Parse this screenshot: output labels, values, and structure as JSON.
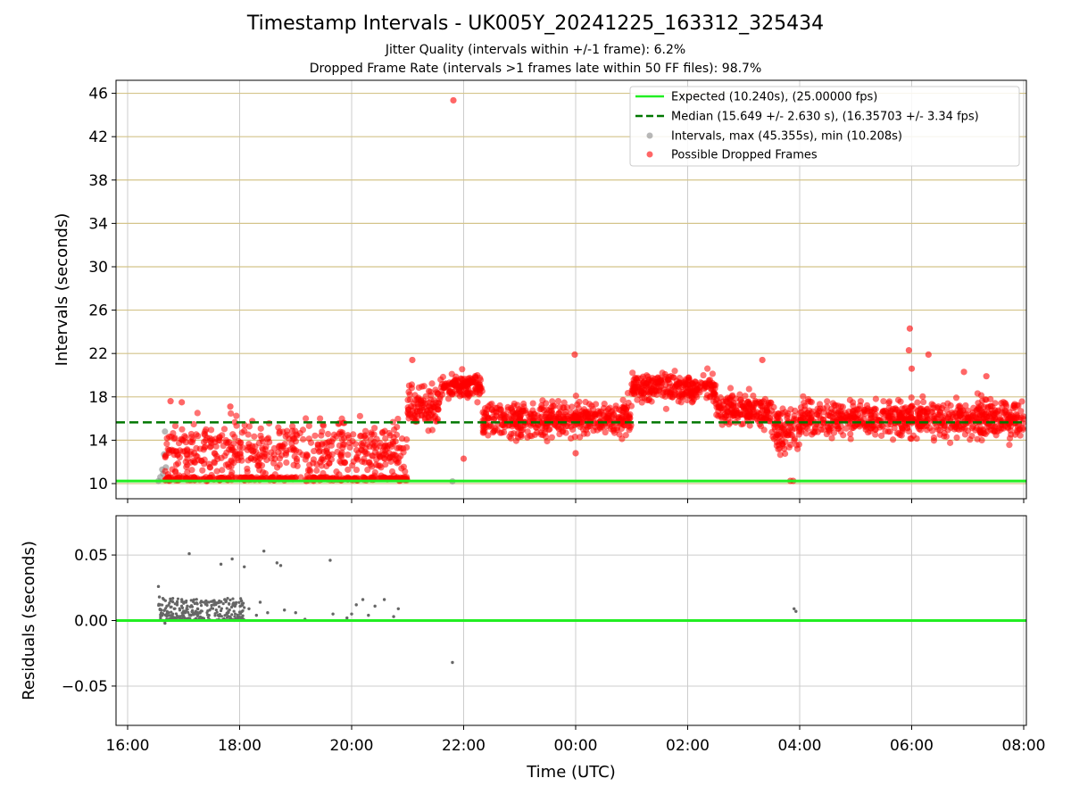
{
  "figure": {
    "title": "Timestamp Intervals - UK005Y_20241225_163312_325434",
    "subtitle_1": "Jitter Quality (intervals within +/-1 frame): 6.2%",
    "subtitle_2": "Dropped Frame Rate (intervals >1 frames late within 50 FF files): 98.7%"
  },
  "colors": {
    "expected_line": "#22ee22",
    "median_line": "#007700",
    "intervals_points": "#888888",
    "dropped_points": "#ff0000",
    "hgrid_top": "#d4c48a",
    "grid": "#cccccc"
  },
  "chart_data": [
    {
      "type": "scatter",
      "panel": "top",
      "title": "Timestamp Intervals - UK005Y_20241225_163312_325434",
      "xlabel": "",
      "ylabel": "Intervals (seconds)",
      "x_is_time": true,
      "xlim": [
        "16:00",
        "08:00"
      ],
      "x_ticks": [
        "16:00",
        "18:00",
        "20:00",
        "22:00",
        "00:00",
        "02:00",
        "04:00",
        "06:00",
        "08:00"
      ],
      "ylim": [
        8.6,
        47.2
      ],
      "y_ticks": [
        10,
        14,
        18,
        22,
        26,
        30,
        34,
        38,
        42,
        46
      ],
      "grid": true,
      "legend_position": "top-right",
      "lines": [
        {
          "name": "Expected (10.240s), (25.00000 fps)",
          "y": 10.24,
          "style": "solid"
        },
        {
          "name": "Median (15.649 +/- 2.630 s), (16.35703 +/- 3.34 fps)",
          "y": 15.649,
          "style": "dashed"
        }
      ],
      "series": [
        {
          "name": "Intervals, max (45.355s), min (10.208s)",
          "points": [
            {
              "t": "16:33",
              "y": 10.24
            },
            {
              "t": "16:35",
              "y": 10.6
            },
            {
              "t": "16:37",
              "y": 11.3
            },
            {
              "t": "16:39",
              "y": 12.7
            },
            {
              "t": "16:40",
              "y": 14.8
            },
            {
              "t": "16:41",
              "y": 11.5
            },
            {
              "t": "16:43",
              "y": 10.3
            },
            {
              "t": "16:45",
              "y": 13.1
            },
            {
              "t": "16:38",
              "y": 10.9
            },
            {
              "t": "21:48",
              "y": 10.21
            }
          ]
        },
        {
          "name": "Possible Dropped Frames",
          "clusters": [
            {
              "from": "16:40",
              "to": "21:00",
              "y_center": 13.0,
              "y_spread": 2.8,
              "y_min": 10.2,
              "baseline_y": 10.3
            },
            {
              "from": "21:00",
              "to": "21:35",
              "y_center": 17.2,
              "y_spread": 1.8
            },
            {
              "from": "21:35",
              "to": "22:20",
              "y_center": 19.0,
              "y_spread": 1.2
            },
            {
              "from": "22:20",
              "to": "01:00",
              "y_center": 16.0,
              "y_spread": 1.6
            },
            {
              "from": "01:00",
              "to": "02:30",
              "y_center": 18.8,
              "y_spread": 1.2
            },
            {
              "from": "02:30",
              "to": "03:30",
              "y_center": 16.8,
              "y_spread": 1.4
            },
            {
              "from": "03:30",
              "to": "04:00",
              "y_center": 15.0,
              "y_spread": 2.2
            },
            {
              "from": "04:00",
              "to": "08:00",
              "y_center": 16.0,
              "y_spread": 1.6
            }
          ],
          "outliers": [
            {
              "t": "21:49",
              "y": 45.355
            },
            {
              "t": "05:58",
              "y": 24.3
            },
            {
              "t": "05:57",
              "y": 22.3
            },
            {
              "t": "06:18",
              "y": 21.9
            },
            {
              "t": "23:59",
              "y": 21.9
            },
            {
              "t": "21:05",
              "y": 21.4
            },
            {
              "t": "03:20",
              "y": 21.4
            },
            {
              "t": "03:50",
              "y": 10.25
            },
            {
              "t": "03:53",
              "y": 10.25
            },
            {
              "t": "16:46",
              "y": 17.6
            },
            {
              "t": "16:58",
              "y": 17.5
            },
            {
              "t": "17:50",
              "y": 17.1
            },
            {
              "t": "22:00",
              "y": 12.3
            },
            {
              "t": "00:00",
              "y": 12.8
            },
            {
              "t": "06:00",
              "y": 20.6
            },
            {
              "t": "06:56",
              "y": 20.3
            },
            {
              "t": "07:20",
              "y": 19.9
            }
          ]
        }
      ]
    },
    {
      "type": "scatter",
      "panel": "bottom",
      "xlabel": "Time (UTC)",
      "ylabel": "Residuals (seconds)",
      "x_is_time": true,
      "xlim": [
        "16:00",
        "08:00"
      ],
      "x_ticks": [
        "16:00",
        "18:00",
        "20:00",
        "22:00",
        "00:00",
        "02:00",
        "04:00",
        "06:00",
        "08:00"
      ],
      "ylim": [
        -0.08,
        0.08
      ],
      "y_ticks": [
        "−0.05",
        "0.00",
        "0.05"
      ],
      "grid": true,
      "reference_line_y": 0.0,
      "points": [
        {
          "t": "16:33",
          "y": 0.026
        },
        {
          "t": "16:34",
          "y": 0.018
        },
        {
          "t": "16:35",
          "y": 0.012
        },
        {
          "t": "16:36",
          "y": 0.008
        },
        {
          "t": "16:37",
          "y": 0.004
        },
        {
          "t": "16:38",
          "y": 0.0
        },
        {
          "t": "16:40",
          "y": -0.002
        },
        {
          "t": "16:42",
          "y": 0.011
        },
        {
          "t": "16:44",
          "y": 0.006
        },
        {
          "t": "16:46",
          "y": 0.015
        },
        {
          "t": "16:48",
          "y": 0.003
        },
        {
          "t": "16:50",
          "y": 0.009
        },
        {
          "t": "16:53",
          "y": 0.012
        },
        {
          "t": "16:56",
          "y": 0.002
        },
        {
          "t": "16:58",
          "y": 0.016
        },
        {
          "t": "17:00",
          "y": 0.007
        },
        {
          "t": "17:04",
          "y": 0.011
        },
        {
          "t": "17:06",
          "y": 0.051
        },
        {
          "t": "17:08",
          "y": 0.004
        },
        {
          "t": "17:12",
          "y": 0.013
        },
        {
          "t": "17:15",
          "y": 0.009
        },
        {
          "t": "17:20",
          "y": 0.002
        },
        {
          "t": "17:24",
          "y": 0.015
        },
        {
          "t": "17:28",
          "y": 0.008
        },
        {
          "t": "17:33",
          "y": 0.012
        },
        {
          "t": "17:37",
          "y": 0.004
        },
        {
          "t": "17:40",
          "y": 0.043
        },
        {
          "t": "17:44",
          "y": 0.016
        },
        {
          "t": "17:48",
          "y": 0.007
        },
        {
          "t": "17:52",
          "y": 0.047
        },
        {
          "t": "17:55",
          "y": 0.011
        },
        {
          "t": "17:58",
          "y": 0.003
        },
        {
          "t": "18:02",
          "y": 0.015
        },
        {
          "t": "18:05",
          "y": 0.041
        },
        {
          "t": "18:10",
          "y": 0.009
        },
        {
          "t": "18:18",
          "y": 0.004
        },
        {
          "t": "18:22",
          "y": 0.014
        },
        {
          "t": "18:26",
          "y": 0.053
        },
        {
          "t": "18:30",
          "y": 0.006
        },
        {
          "t": "18:40",
          "y": 0.044
        },
        {
          "t": "18:44",
          "y": 0.042
        },
        {
          "t": "18:48",
          "y": 0.008
        },
        {
          "t": "19:00",
          "y": 0.006
        },
        {
          "t": "19:10",
          "y": 0.001
        },
        {
          "t": "19:37",
          "y": 0.046
        },
        {
          "t": "19:40",
          "y": 0.005
        },
        {
          "t": "19:55",
          "y": 0.002
        },
        {
          "t": "20:00",
          "y": 0.005
        },
        {
          "t": "20:05",
          "y": 0.012
        },
        {
          "t": "20:12",
          "y": 0.016
        },
        {
          "t": "20:18",
          "y": 0.004
        },
        {
          "t": "20:25",
          "y": 0.011
        },
        {
          "t": "20:35",
          "y": 0.016
        },
        {
          "t": "20:45",
          "y": 0.003
        },
        {
          "t": "20:50",
          "y": 0.009
        },
        {
          "t": "21:48",
          "y": -0.032
        },
        {
          "t": "03:54",
          "y": 0.009
        },
        {
          "t": "03:56",
          "y": 0.007
        }
      ],
      "dense_band": {
        "from": "16:33",
        "to": "18:05",
        "y_min": 0.0,
        "y_max": 0.017
      }
    }
  ]
}
